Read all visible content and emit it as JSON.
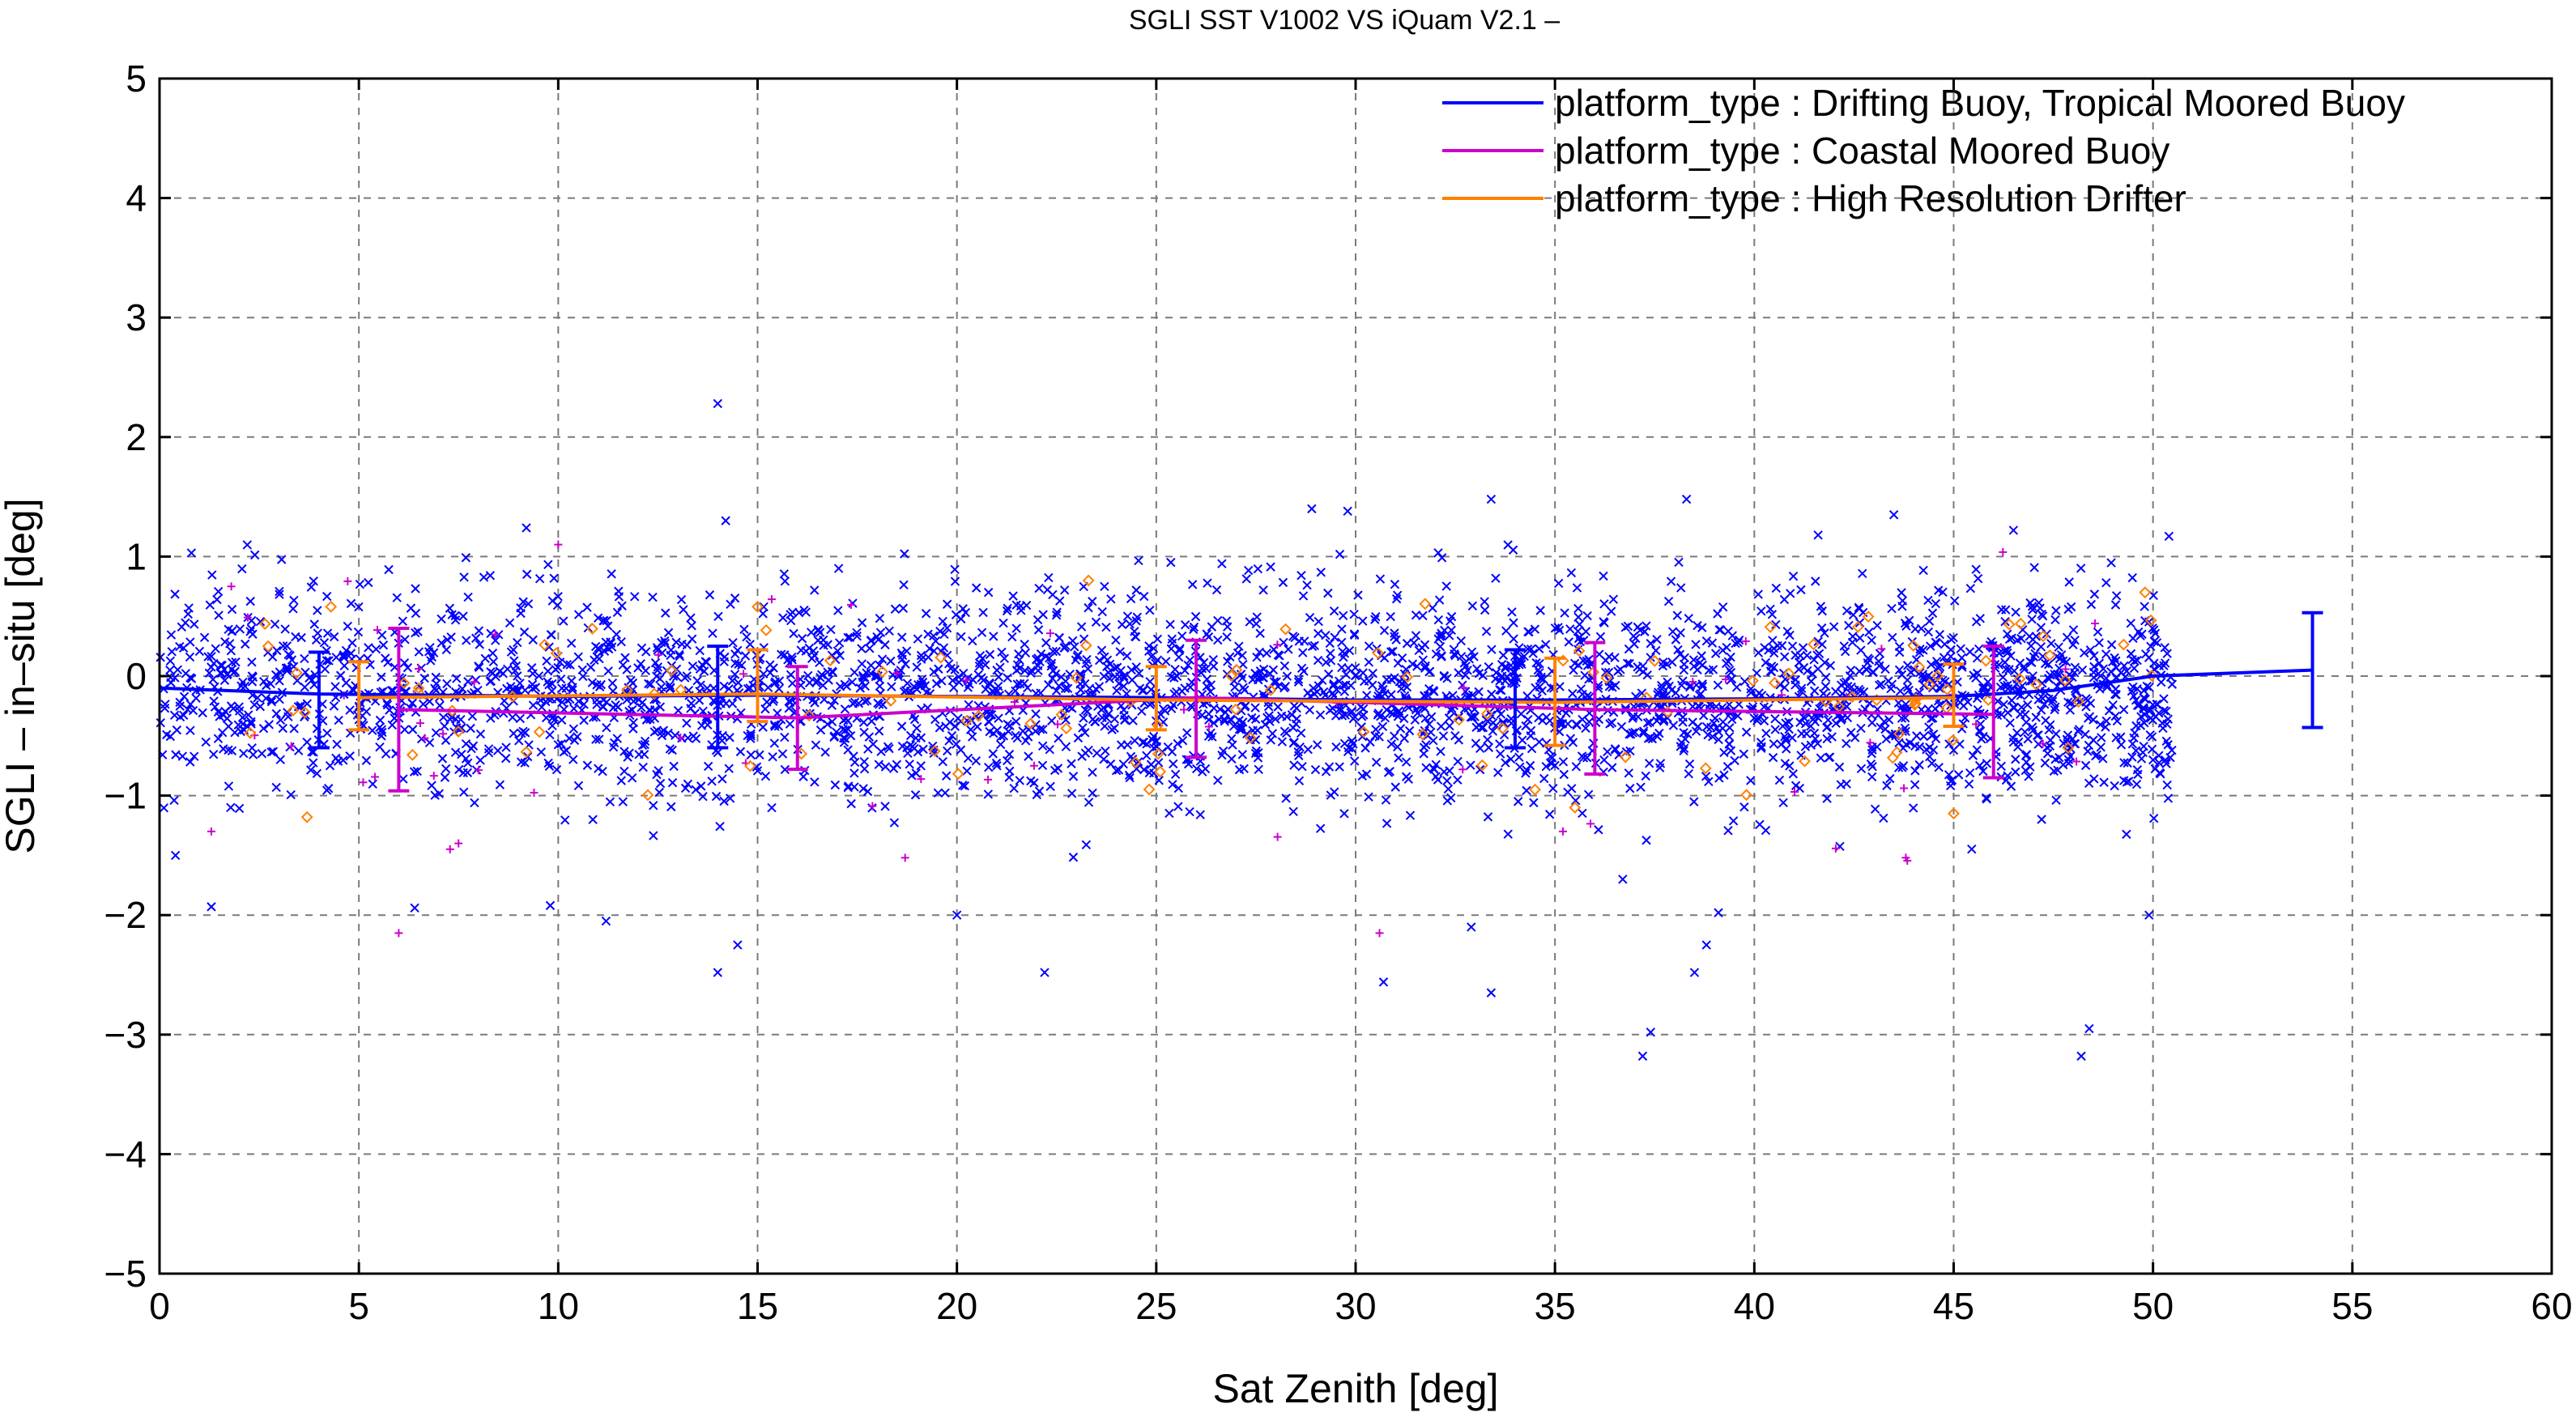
{
  "chart_data": {
    "type": "scatter",
    "title": "SGLI SST V1002 VS iQuam V2.1  –",
    "xlabel": "Sat Zenith [deg]",
    "ylabel": "SGLI – in–situ [deg]",
    "xlim": [
      0,
      60
    ],
    "ylim": [
      -5,
      5
    ],
    "xticks": [
      0,
      5,
      10,
      15,
      20,
      25,
      30,
      35,
      40,
      45,
      50,
      55,
      60
    ],
    "yticks": [
      -5,
      -4,
      -3,
      -2,
      -1,
      0,
      1,
      2,
      3,
      4,
      5
    ],
    "xtick_labels": [
      "0",
      "5",
      "10",
      "15",
      "20",
      "25",
      "30",
      "35",
      "40",
      "45",
      "50",
      "55",
      "60"
    ],
    "ytick_labels": [
      "−5",
      "−4",
      "−3",
      "−2",
      "−1",
      "0",
      "1",
      "2",
      "3",
      "4",
      "5"
    ],
    "grid": true,
    "legend_position": "top-right",
    "series": [
      {
        "name": "platform_type : Drifting Buoy, Tropical Moored Buoy",
        "color": "#0000ff",
        "marker": "x",
        "scatter_count": 3400,
        "scatter_x_range": [
          0,
          50.5
        ],
        "scatter_mean": -0.15,
        "scatter_sd": 0.42,
        "outliers": [
          {
            "x": 14.0,
            "y": 2.28
          },
          {
            "x": 14.2,
            "y": 1.3
          },
          {
            "x": 9.2,
            "y": 1.24
          },
          {
            "x": 33.4,
            "y": 1.48
          },
          {
            "x": 38.3,
            "y": 1.48
          },
          {
            "x": 28.9,
            "y": 1.4
          },
          {
            "x": 29.8,
            "y": 1.38
          },
          {
            "x": 43.5,
            "y": 1.35
          },
          {
            "x": 41.6,
            "y": 1.18
          },
          {
            "x": 46.5,
            "y": 1.22
          },
          {
            "x": 50.4,
            "y": 1.17
          },
          {
            "x": 0.8,
            "y": 1.03
          },
          {
            "x": 14.0,
            "y": -2.48
          },
          {
            "x": 14.5,
            "y": -2.25
          },
          {
            "x": 22.2,
            "y": -2.48
          },
          {
            "x": 30.7,
            "y": -2.56
          },
          {
            "x": 33.4,
            "y": -2.65
          },
          {
            "x": 37.2,
            "y": -3.18
          },
          {
            "x": 37.4,
            "y": -2.98
          },
          {
            "x": 38.5,
            "y": -2.48
          },
          {
            "x": 38.8,
            "y": -2.25
          },
          {
            "x": 39.1,
            "y": -1.98
          },
          {
            "x": 48.2,
            "y": -3.18
          },
          {
            "x": 48.4,
            "y": -2.95
          },
          {
            "x": 1.3,
            "y": -1.93
          },
          {
            "x": 6.4,
            "y": -1.94
          },
          {
            "x": 9.8,
            "y": -1.92
          },
          {
            "x": 20.0,
            "y": -2.0
          },
          {
            "x": 49.9,
            "y": -2.0
          },
          {
            "x": 11.2,
            "y": -2.05
          },
          {
            "x": 32.9,
            "y": -2.1
          },
          {
            "x": 36.7,
            "y": -1.7
          },
          {
            "x": 0.4,
            "y": -1.5
          }
        ],
        "mean_line": {
          "x": [
            0,
            4,
            10,
            15,
            20,
            25,
            30,
            35,
            40,
            45,
            47.5,
            50,
            54
          ],
          "y": [
            -0.1,
            -0.15,
            -0.17,
            -0.16,
            -0.17,
            -0.18,
            -0.2,
            -0.2,
            -0.19,
            -0.17,
            -0.12,
            0.0,
            0.05
          ]
        },
        "error_bars": [
          {
            "x": 4,
            "y": -0.15,
            "lo": -0.6,
            "hi": 0.2
          },
          {
            "x": 14,
            "y": -0.16,
            "lo": -0.6,
            "hi": 0.25
          },
          {
            "x": 34,
            "y": -0.2,
            "lo": -0.6,
            "hi": 0.22
          },
          {
            "x": 54,
            "y": 0.05,
            "lo": -0.43,
            "hi": 0.53
          }
        ]
      },
      {
        "name": "platform_type : Coastal Moored Buoy",
        "color": "#cc00cc",
        "marker": "+",
        "scatter_count": 60,
        "scatter_x_range": [
          0.5,
          50
        ],
        "scatter_mean": -0.3,
        "scatter_sd": 0.55,
        "outliers": [
          {
            "x": 6.0,
            "y": -2.15
          },
          {
            "x": 30.6,
            "y": -2.15
          },
          {
            "x": 1.8,
            "y": 0.75
          },
          {
            "x": 10.0,
            "y": 1.1
          },
          {
            "x": 43.8,
            "y": -1.52
          },
          {
            "x": 35.2,
            "y": -1.3
          },
          {
            "x": 18.7,
            "y": -1.52
          },
          {
            "x": 1.3,
            "y": -1.3
          },
          {
            "x": 7.5,
            "y": -1.4
          }
        ],
        "mean_line": {
          "x": [
            6,
            16,
            26,
            36,
            46
          ],
          "y": [
            -0.28,
            -0.35,
            -0.18,
            -0.28,
            -0.32
          ]
        },
        "error_bars": [
          {
            "x": 6,
            "y": -0.28,
            "lo": -0.96,
            "hi": 0.4
          },
          {
            "x": 16,
            "y": -0.35,
            "lo": -0.78,
            "hi": 0.08
          },
          {
            "x": 26,
            "y": -0.18,
            "lo": -0.68,
            "hi": 0.3
          },
          {
            "x": 36,
            "y": -0.28,
            "lo": -0.82,
            "hi": 0.28
          },
          {
            "x": 46,
            "y": -0.32,
            "lo": -0.85,
            "hi": 0.25
          }
        ]
      },
      {
        "name": "platform_type : High Resolution Drifter",
        "color": "#ff8000",
        "marker": "diamond",
        "scatter_count": 110,
        "scatter_x_range": [
          0.5,
          50
        ],
        "scatter_mean": -0.2,
        "scatter_sd": 0.35,
        "outliers": [
          {
            "x": 23.3,
            "y": 0.8
          },
          {
            "x": 49.8,
            "y": 0.7
          },
          {
            "x": 15.0,
            "y": 0.58
          },
          {
            "x": 4.3,
            "y": 0.58
          },
          {
            "x": 3.7,
            "y": -1.18
          },
          {
            "x": 34.5,
            "y": -0.95
          },
          {
            "x": 35.5,
            "y": -1.1
          },
          {
            "x": 45.0,
            "y": -1.15
          },
          {
            "x": 25.1,
            "y": -0.8
          }
        ],
        "mean_line": {
          "x": [
            5,
            15,
            25,
            35,
            45
          ],
          "y": [
            -0.18,
            -0.15,
            -0.2,
            -0.22,
            -0.18
          ]
        },
        "error_bars": [
          {
            "x": 5,
            "y": -0.18,
            "lo": -0.45,
            "hi": 0.12
          },
          {
            "x": 15,
            "y": -0.15,
            "lo": -0.38,
            "hi": 0.22
          },
          {
            "x": 25,
            "y": -0.2,
            "lo": -0.45,
            "hi": 0.08
          },
          {
            "x": 35,
            "y": -0.22,
            "lo": -0.58,
            "hi": 0.15
          },
          {
            "x": 45,
            "y": -0.18,
            "lo": -0.42,
            "hi": 0.1
          }
        ]
      }
    ]
  }
}
